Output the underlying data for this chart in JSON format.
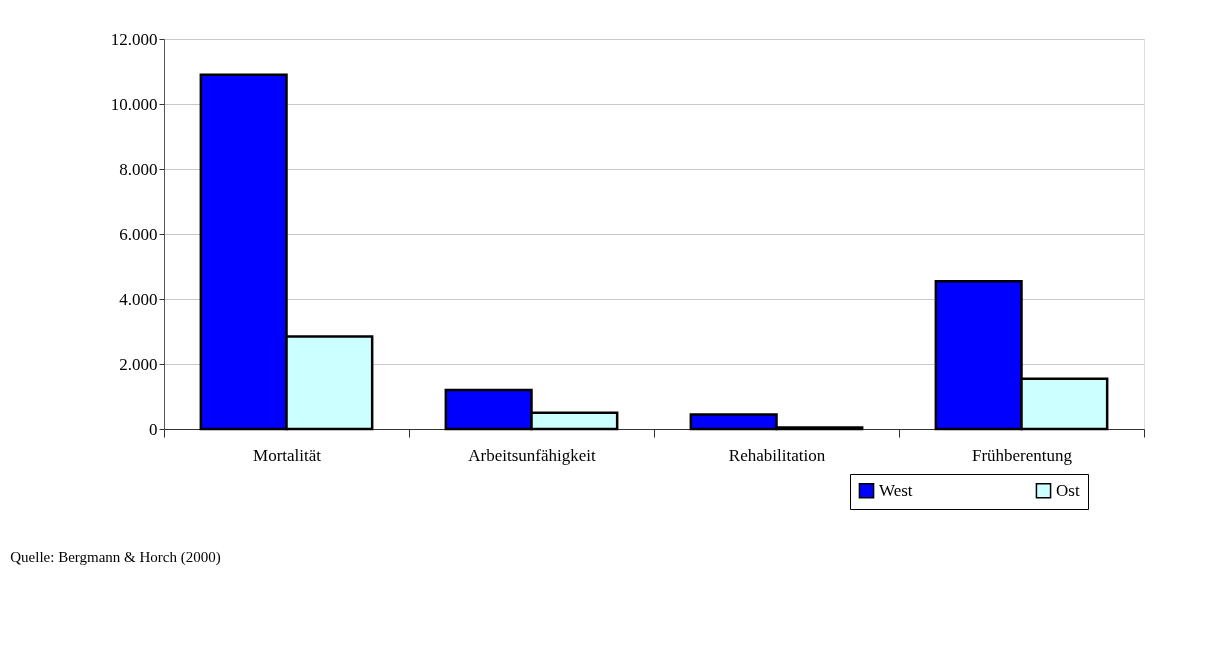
{
  "chart_data": {
    "type": "bar",
    "categories": [
      "Mortalität",
      "Arbeitsunfähigkeit",
      "Rehabilitation",
      "Frühberentung"
    ],
    "series": [
      {
        "name": "West",
        "color": "#0000ff",
        "values": [
          10900,
          1200,
          450,
          4550
        ]
      },
      {
        "name": "Ost",
        "color": "#ccffff",
        "values": [
          2850,
          500,
          50,
          1550
        ]
      }
    ],
    "ylim": [
      0,
      12000
    ],
    "yticks": [
      {
        "value": 0,
        "label": "0"
      },
      {
        "value": 2000,
        "label": "2.000"
      },
      {
        "value": 4000,
        "label": "4.000"
      },
      {
        "value": 6000,
        "label": "6.000"
      },
      {
        "value": 8000,
        "label": "8.000"
      },
      {
        "value": 10000,
        "label": "10.000"
      },
      {
        "value": 12000,
        "label": "12.000"
      }
    ],
    "grid": "y",
    "legend": "bottom right",
    "annotations": [
      "Quelle: Bergmann & Horch (2000)"
    ]
  }
}
